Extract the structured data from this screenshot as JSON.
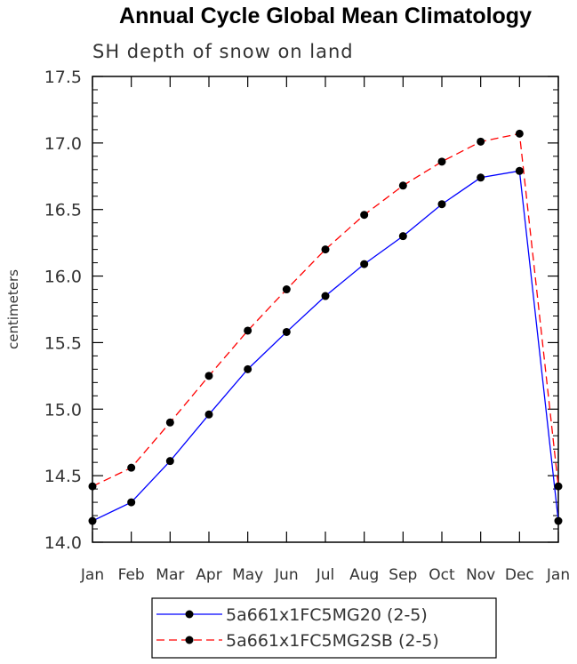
{
  "chart_data": {
    "type": "line",
    "title": "Annual Cycle Global Mean Climatology",
    "subtitle": "SH depth of snow on land",
    "xlabel": "",
    "ylabel": "centimeters",
    "categories": [
      "Jan",
      "Feb",
      "Mar",
      "Apr",
      "May",
      "Jun",
      "Jul",
      "Aug",
      "Sep",
      "Oct",
      "Nov",
      "Dec",
      "Jan"
    ],
    "ylim": [
      14.0,
      17.5
    ],
    "yticks": [
      "14.0",
      "14.5",
      "15.0",
      "15.5",
      "16.0",
      "16.5",
      "17.0",
      "17.5"
    ],
    "grid": false,
    "legend_position": "bottom-center",
    "series": [
      {
        "name": "5a661x1FC5MG20 (2-5)",
        "color": "#0000ff",
        "dash": "solid",
        "values": [
          14.16,
          14.3,
          14.61,
          14.96,
          15.3,
          15.58,
          15.85,
          16.09,
          16.3,
          16.54,
          16.74,
          16.79,
          14.16
        ]
      },
      {
        "name": "5a661x1FC5MG2SB (2-5)",
        "color": "#ff0000",
        "dash": "dashed",
        "values": [
          14.42,
          14.56,
          14.9,
          15.25,
          15.59,
          15.9,
          16.2,
          16.46,
          16.68,
          16.86,
          17.01,
          17.07,
          14.42
        ]
      }
    ]
  }
}
